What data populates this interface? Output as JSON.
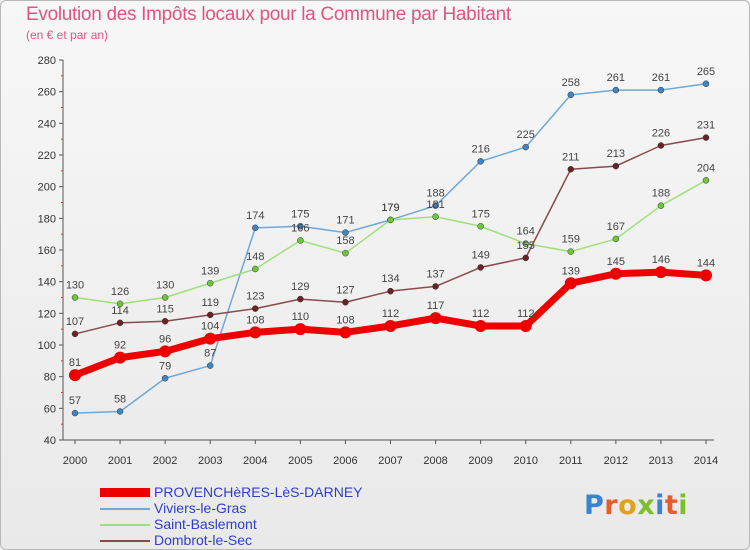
{
  "title": "Evolution des Impôts locaux pour la Commune par Habitant",
  "subtitle": "(en € et par an)",
  "logo_text": "Proxiti",
  "logo_colors": [
    "#3a83d0",
    "#e85c2b",
    "#e0a21a",
    "#7bbf2a",
    "#3a83d0",
    "#e85c2b",
    "#7bbf2a"
  ],
  "chart_data": {
    "type": "line",
    "x": [
      "2000",
      "2001",
      "2002",
      "2003",
      "2004",
      "2005",
      "2006",
      "2007",
      "2008",
      "2009",
      "2010",
      "2011",
      "2012",
      "2013",
      "2014"
    ],
    "ylim": [
      40,
      280
    ],
    "yticks": [
      40,
      60,
      80,
      100,
      120,
      140,
      160,
      180,
      200,
      220,
      240,
      260,
      280
    ],
    "grid": false,
    "legend_position": "bottom-left",
    "series": [
      {
        "name": "PROVENCHèRES-LèS-DARNEY",
        "color": "#ee0000",
        "marker": "#ee0000",
        "thick": true,
        "values": [
          81,
          92,
          96,
          104,
          108,
          110,
          108,
          112,
          117,
          112,
          112,
          139,
          145,
          146,
          144
        ]
      },
      {
        "name": "Viviers-le-Gras",
        "color": "#6fa7d6",
        "marker": "#3f85c4",
        "thick": false,
        "values": [
          57,
          58,
          79,
          87,
          174,
          175,
          171,
          179,
          188,
          216,
          225,
          258,
          261,
          261,
          265
        ]
      },
      {
        "name": "Saint-Baslemont",
        "color": "#9ee07a",
        "marker": "#6cc73a",
        "thick": false,
        "values": [
          130,
          126,
          130,
          139,
          148,
          166,
          158,
          179,
          181,
          175,
          164,
          159,
          167,
          188,
          204
        ]
      },
      {
        "name": "Dombrot-le-Sec",
        "color": "#8a4a4a",
        "marker": "#6b2222",
        "thick": false,
        "values": [
          107,
          114,
          115,
          119,
          123,
          129,
          127,
          134,
          137,
          149,
          155,
          211,
          213,
          226,
          231
        ]
      }
    ]
  }
}
